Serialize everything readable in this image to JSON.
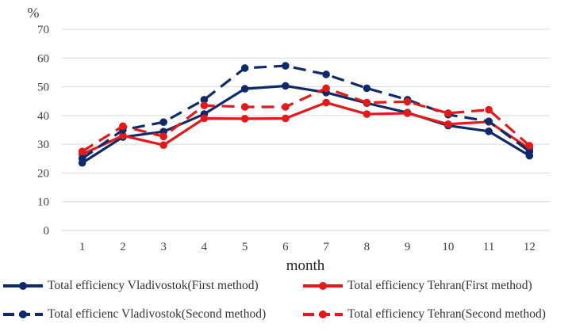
{
  "chart_data": {
    "type": "line",
    "title": "",
    "unit_label": "%",
    "xlabel": "month",
    "ylabel": "%",
    "ylim": [
      0,
      70
    ],
    "yticks": [
      0,
      10,
      20,
      30,
      40,
      50,
      60,
      70
    ],
    "grid": true,
    "legend_position": "bottom",
    "categories": [
      "1",
      "2",
      "3",
      "4",
      "5",
      "6",
      "7",
      "8",
      "9",
      "10",
      "11",
      "12"
    ],
    "series": [
      {
        "name": "Total efficiency Vladivostok(First method)",
        "color": "#0F2A6B",
        "dashed": false,
        "values": [
          23.5,
          32.5,
          34.4,
          40.5,
          49.3,
          50.3,
          48.0,
          44.3,
          41.0,
          36.5,
          34.5,
          26.0
        ]
      },
      {
        "name": "Total efficiency Tehran(First method)",
        "color": "#E31A1C",
        "dashed": false,
        "values": [
          26.5,
          33.0,
          29.7,
          39.0,
          38.9,
          39.0,
          44.5,
          40.5,
          40.8,
          37.0,
          37.8,
          28.5
        ]
      },
      {
        "name": "Total efficienc Vladivostok(Second method)",
        "color": "#0F2A6B",
        "dashed": true,
        "values": [
          25.0,
          35.0,
          37.7,
          45.5,
          56.5,
          57.3,
          54.3,
          49.5,
          45.5,
          40.3,
          38.0,
          27.5
        ]
      },
      {
        "name": "Total efficiency Tehran(Second method)",
        "color": "#E31A1C",
        "dashed": true,
        "values": [
          27.5,
          36.3,
          32.7,
          43.5,
          43.0,
          43.0,
          49.5,
          44.5,
          44.8,
          40.8,
          42.0,
          29.5
        ]
      }
    ]
  }
}
